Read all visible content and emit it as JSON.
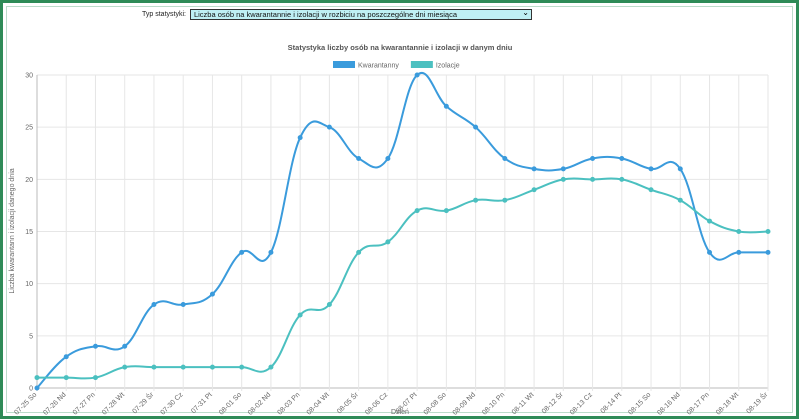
{
  "filter": {
    "label": "Typ statystyki:",
    "selected": "Liczba osób na kwarantannie i izolacji w rozbiciu na poszczególne dni miesiąca",
    "icon": "chevron-down-icon"
  },
  "chart_data": {
    "type": "line",
    "title": "Statystyka liczby osób na kwarantannie i izolacji w danym dniu",
    "xlabel": "Dzień",
    "ylabel": "Liczba kwarantann i izolacji danego dnia",
    "ylim": [
      0,
      30
    ],
    "yticks": [
      0,
      5,
      10,
      15,
      20,
      25,
      30
    ],
    "grid": true,
    "legend_position": "top",
    "categories": [
      "07-25 So",
      "07-26 Nd",
      "07-27 Pn",
      "07-28 Wt",
      "07-29 Śr",
      "07-30 Cz",
      "07-31 Pt",
      "08-01 So",
      "08-02 Nd",
      "08-03 Pn",
      "08-04 Wt",
      "08-05 Śr",
      "08-06 Cz",
      "08-07 Pt",
      "08-08 So",
      "08-09 Nd",
      "08-10 Pn",
      "08-11 Wt",
      "08-12 Śr",
      "08-13 Cz",
      "08-14 Pt",
      "08-15 So",
      "08-16 Nd",
      "08-17 Pn",
      "08-18 Wt",
      "08-19 Śr"
    ],
    "series": [
      {
        "name": "Kwarantanny",
        "color": "#3a9bdc",
        "values": [
          0,
          3,
          4,
          4,
          8,
          8,
          9,
          13,
          13,
          24,
          25,
          22,
          22,
          30,
          27,
          25,
          22,
          21,
          21,
          22,
          22,
          21,
          21,
          13,
          13,
          13
        ]
      },
      {
        "name": "Izolacje",
        "color": "#4bc0c0",
        "values": [
          1,
          1,
          1,
          2,
          2,
          2,
          2,
          2,
          2,
          7,
          8,
          13,
          14,
          17,
          17,
          18,
          18,
          19,
          20,
          20,
          20,
          19,
          18,
          16,
          15,
          15
        ]
      }
    ]
  }
}
